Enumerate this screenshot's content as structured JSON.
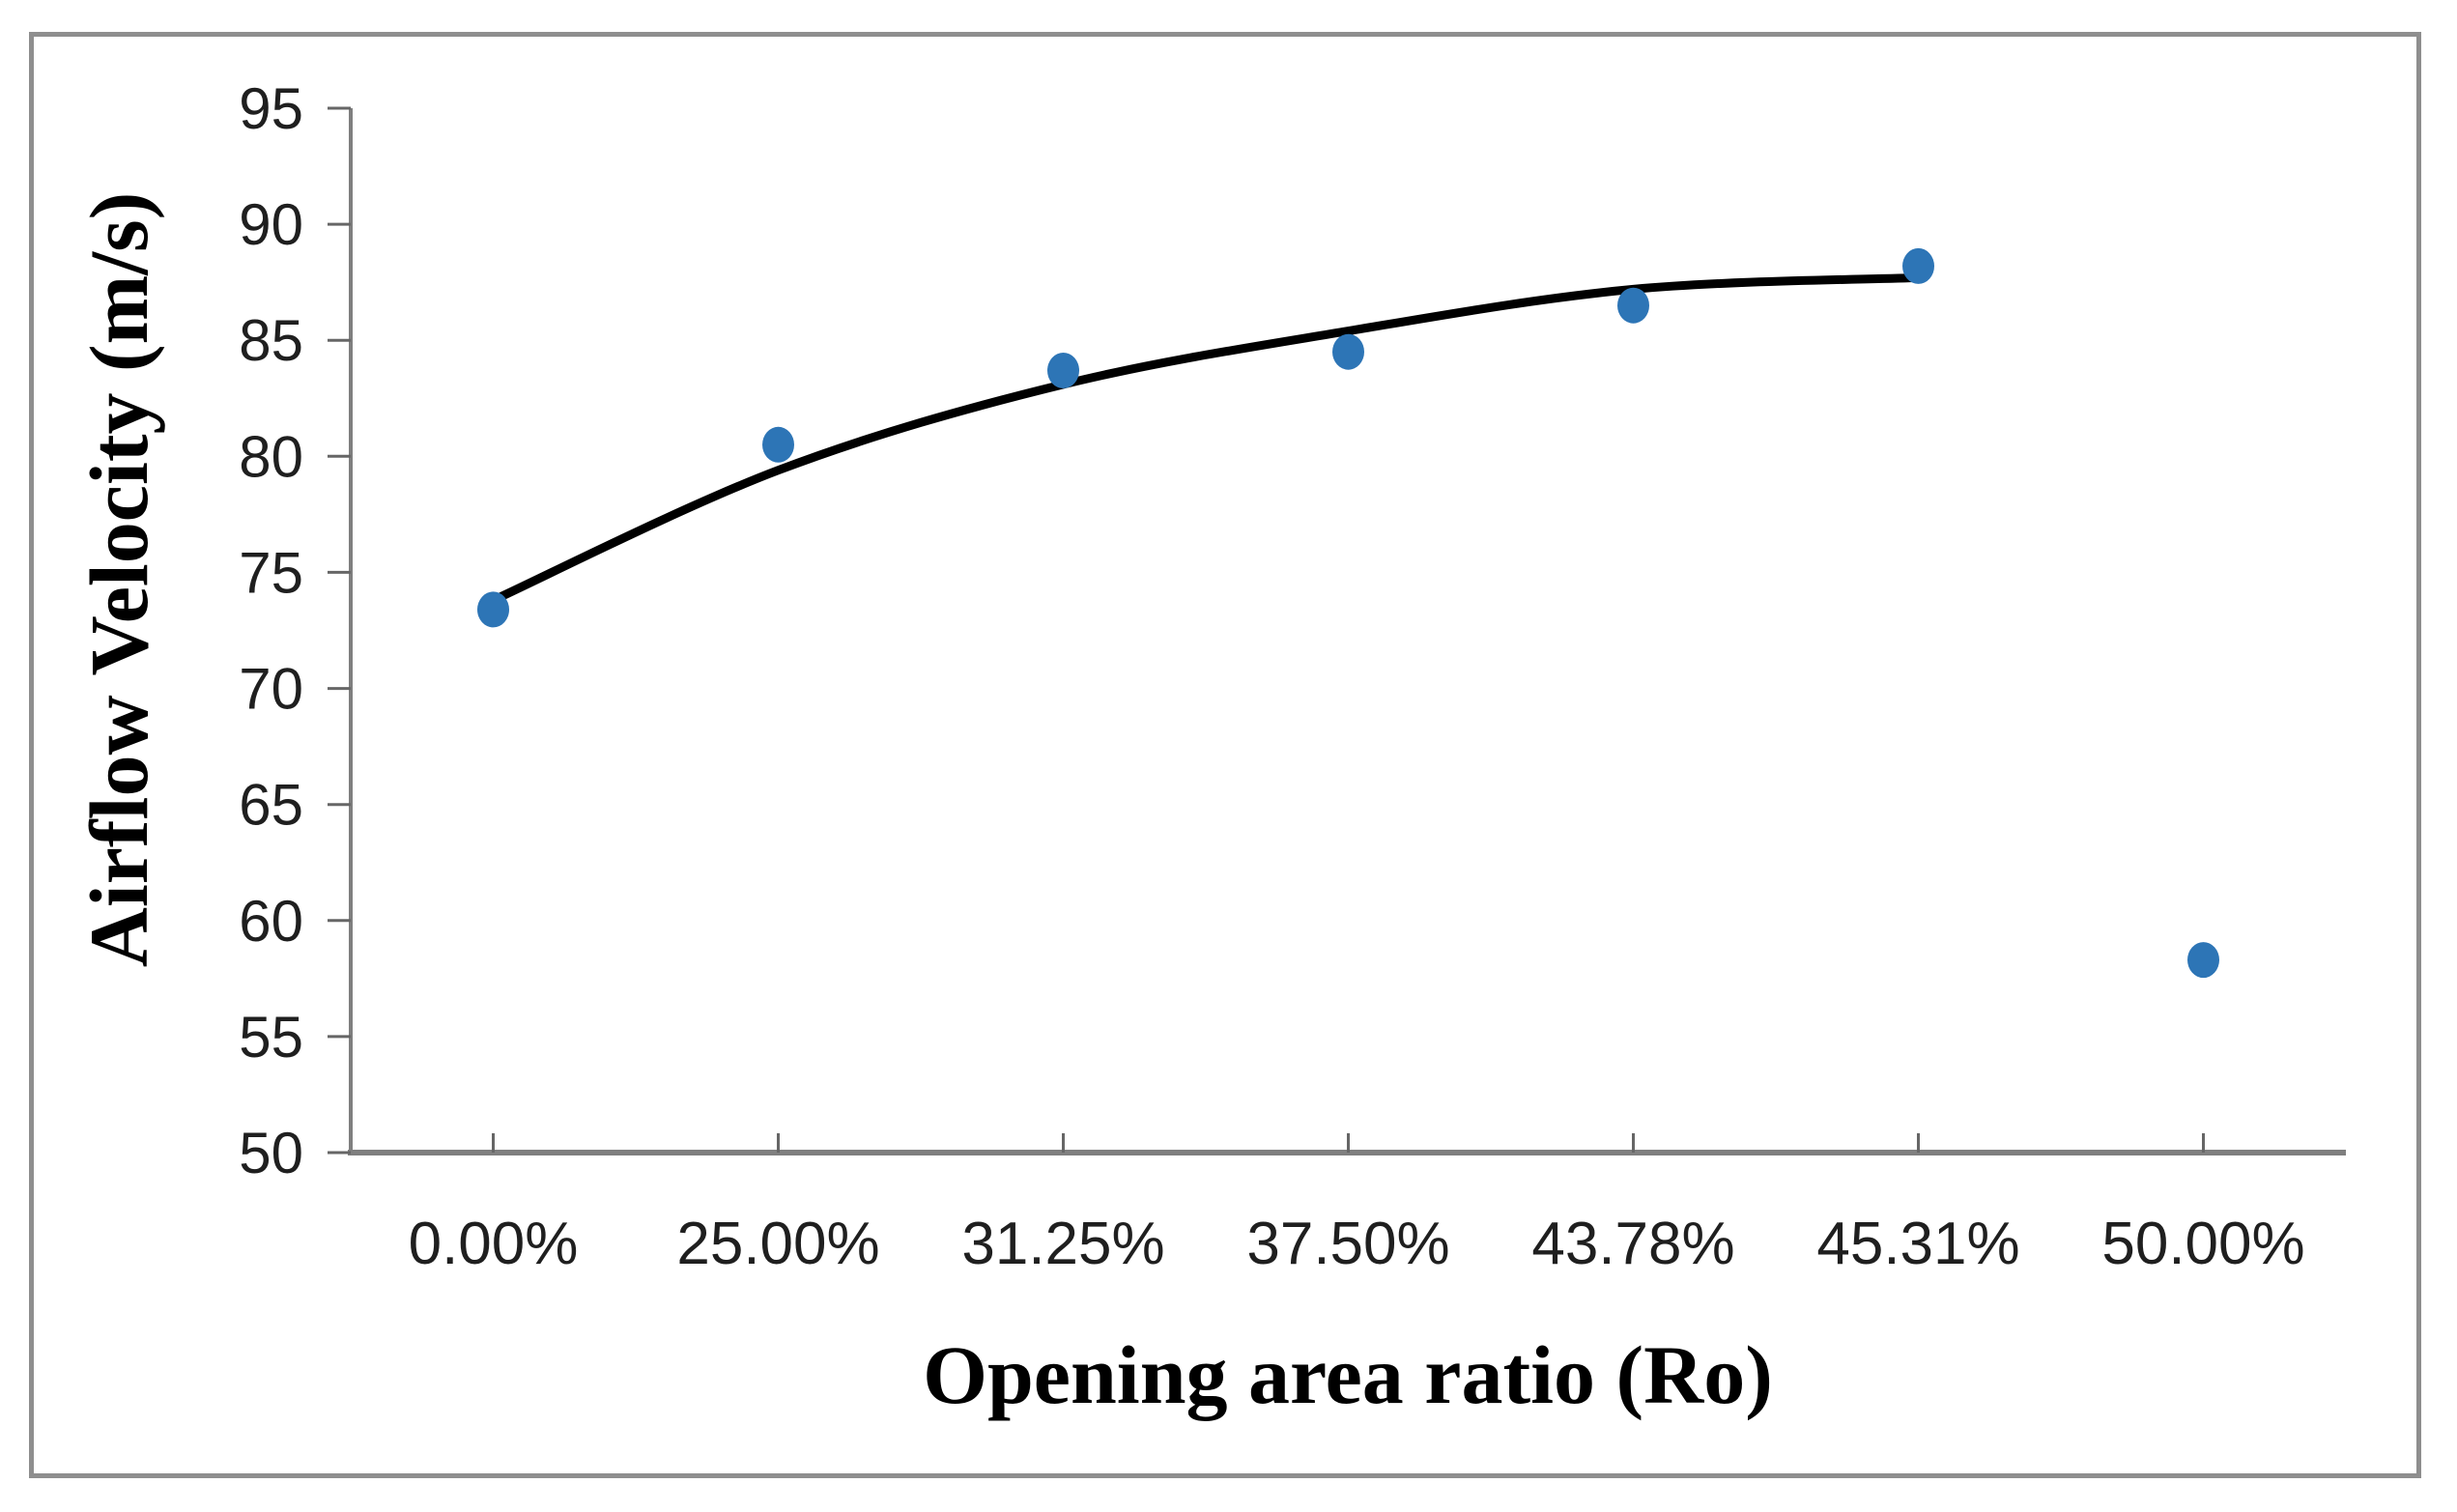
{
  "window": {
    "background": "#ffffff",
    "border_color": "#8e8e8e"
  },
  "chart_data": {
    "type": "scatter",
    "title": "",
    "xlabel": "Opening area ratio (Ro)",
    "ylabel": "Airflow Velocity (m/s)",
    "categories": [
      "0.00%",
      "25.00%",
      "31.25%",
      "37.50%",
      "43.78%",
      "45.31%",
      "50.00%"
    ],
    "values": [
      73.4,
      80.5,
      83.7,
      84.5,
      86.5,
      88.2,
      58.3
    ],
    "marker_color": "#2D75B6",
    "trendline": {
      "type": "polynomial",
      "color": "#000000",
      "fitted_values": [
        73.8,
        79.4,
        83.1,
        85.4,
        87.2,
        87.7
      ],
      "spans_categories": [
        "0.00%",
        "45.31%"
      ]
    },
    "ylim": [
      50,
      95
    ],
    "yticks": [
      50,
      55,
      60,
      65,
      70,
      75,
      80,
      85,
      90,
      95
    ],
    "grid": false,
    "legend": "none",
    "axis_color": "#7f7f7f",
    "tick_mark_color": "#666666",
    "text_color": "#1f1f1f"
  }
}
